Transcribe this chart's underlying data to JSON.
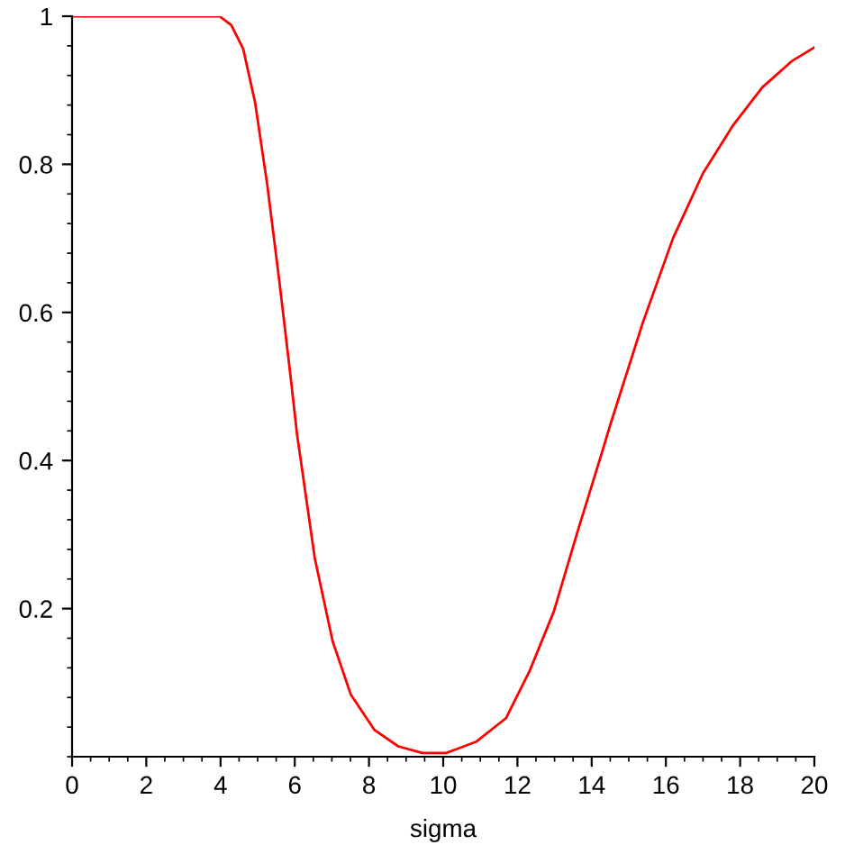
{
  "chart_data": {
    "type": "line",
    "xlabel": "sigma",
    "grid": false,
    "xlim": [
      0,
      20
    ],
    "ylim": [
      0,
      1
    ],
    "xticks": [
      0,
      2,
      4,
      6,
      8,
      10,
      12,
      14,
      16,
      18,
      20
    ],
    "yticks": [
      0.2,
      0.4,
      0.6,
      0.8,
      1
    ],
    "series": [
      {
        "color": "#ff0000",
        "x": [
          0,
          1,
          2,
          3,
          3.97,
          4.29,
          4.61,
          4.93,
          5.26,
          5.58,
          5.9,
          6.06,
          6.54,
          7.02,
          7.51,
          8.15,
          8.79,
          9.44,
          10.08,
          10.88,
          11.69,
          12.33,
          12.98,
          13.62,
          14.26,
          14.5,
          15.39,
          16.19,
          17.0,
          17.8,
          18.6,
          19.41,
          20
        ],
        "values": [
          1,
          1,
          1,
          1,
          1,
          0.988,
          0.956,
          0.884,
          0.772,
          0.644,
          0.508,
          0.436,
          0.268,
          0.156,
          0.084,
          0.036,
          0.014,
          0.005,
          0.005,
          0.02,
          0.052,
          0.116,
          0.196,
          0.304,
          0.408,
          0.448,
          0.588,
          0.7,
          0.788,
          0.852,
          0.904,
          0.94,
          0.958
        ]
      }
    ]
  }
}
